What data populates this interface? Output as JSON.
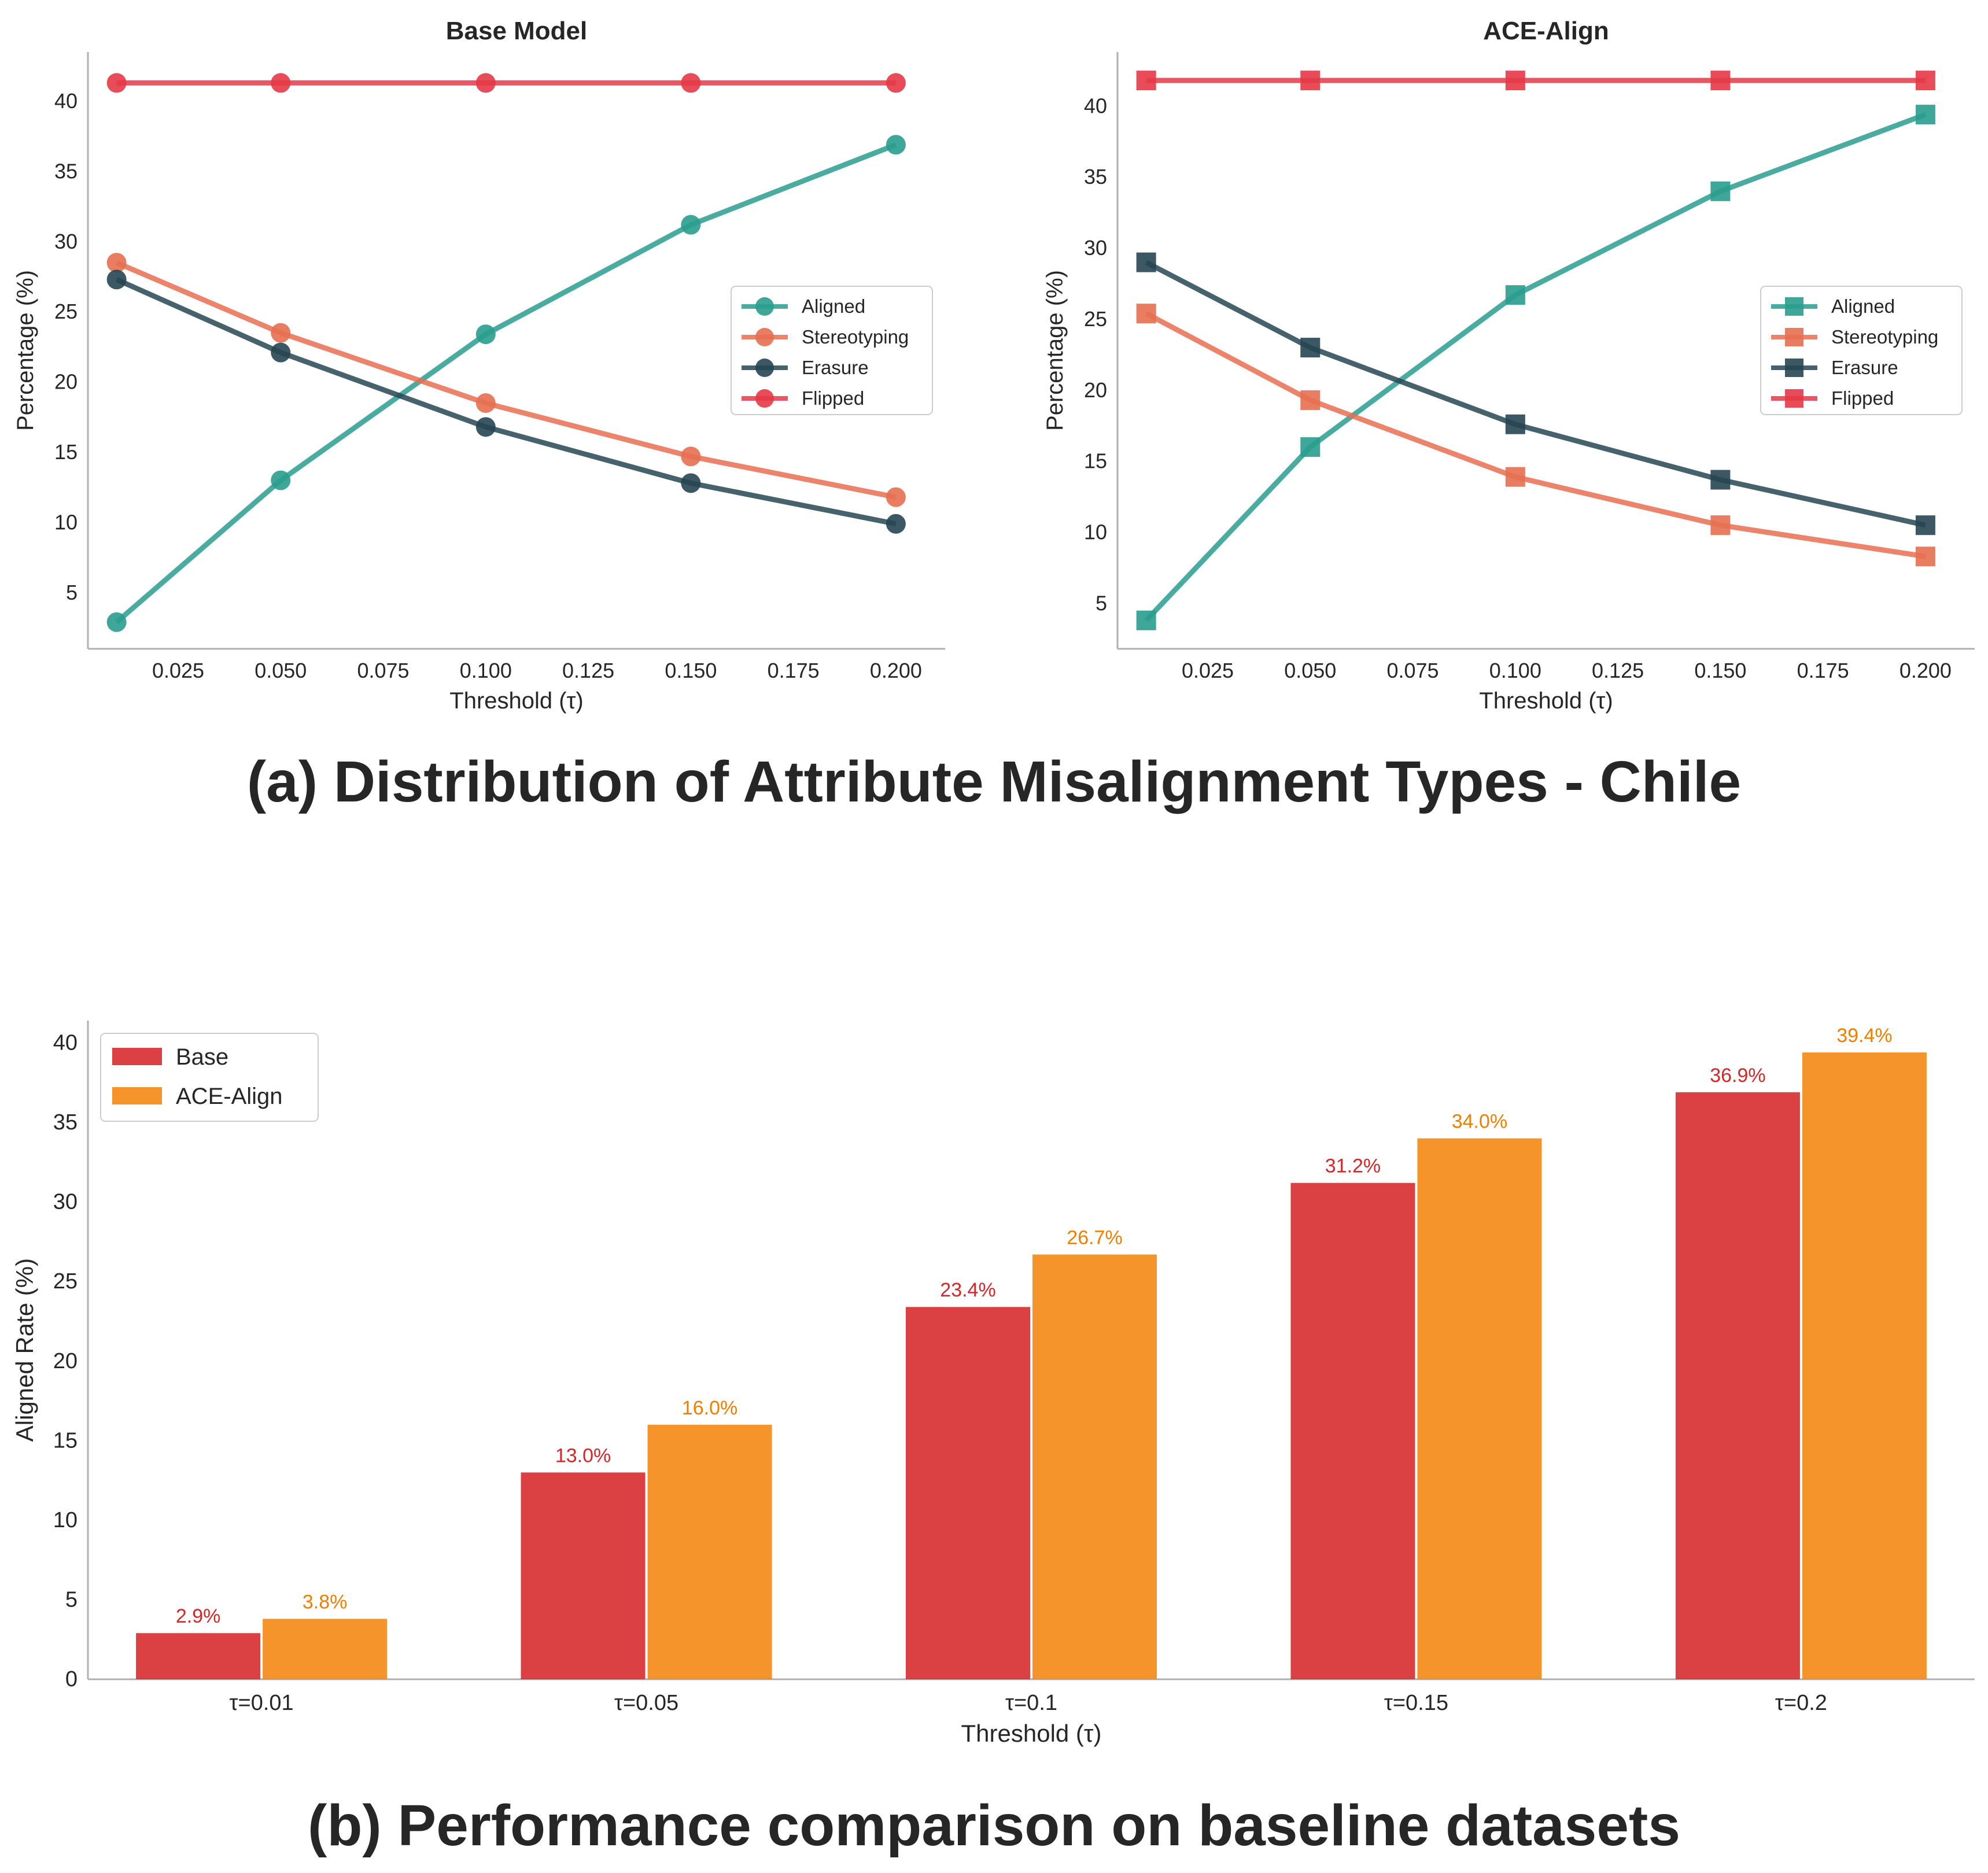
{
  "chart_data": [
    {
      "type": "line",
      "title": "Base Model",
      "xlabel": "Threshold (τ)",
      "ylabel": "Percentage (%)",
      "xlim": [
        0.003,
        0.212
      ],
      "ylim": [
        1.0,
        43.5
      ],
      "xticks": [
        "0.025",
        "0.050",
        "0.075",
        "0.100",
        "0.125",
        "0.150",
        "0.175",
        "0.200"
      ],
      "yticks": [
        "5",
        "10",
        "15",
        "20",
        "25",
        "30",
        "35",
        "40"
      ],
      "marker": "circle",
      "legend_position": "center-right",
      "x": [
        0.01,
        0.05,
        0.1,
        0.15,
        0.2
      ],
      "series": [
        {
          "name": "Aligned",
          "color": "#2a9d8f",
          "values": [
            2.9,
            13.0,
            23.4,
            31.2,
            36.9
          ]
        },
        {
          "name": "Stereotyping",
          "color": "#e76f51",
          "values": [
            28.5,
            23.5,
            18.5,
            14.7,
            11.8
          ]
        },
        {
          "name": "Erasure",
          "color": "#264653",
          "values": [
            27.3,
            22.1,
            16.8,
            12.8,
            9.9
          ]
        },
        {
          "name": "Flipped",
          "color": "#e63946",
          "values": [
            41.3,
            41.3,
            41.3,
            41.3,
            41.3
          ]
        }
      ]
    },
    {
      "type": "line",
      "title": "ACE-Align",
      "xlabel": "Threshold (τ)",
      "ylabel": "Percentage (%)",
      "xlim": [
        0.003,
        0.212
      ],
      "ylim": [
        1.8,
        43.8
      ],
      "xticks": [
        "0.025",
        "0.050",
        "0.075",
        "0.100",
        "0.125",
        "0.150",
        "0.175",
        "0.200"
      ],
      "yticks": [
        "5",
        "10",
        "15",
        "20",
        "25",
        "30",
        "35",
        "40"
      ],
      "marker": "square",
      "legend_position": "center-right",
      "x": [
        0.01,
        0.05,
        0.1,
        0.15,
        0.2
      ],
      "series": [
        {
          "name": "Aligned",
          "color": "#2a9d8f",
          "values": [
            3.8,
            16.0,
            26.7,
            34.0,
            39.4
          ]
        },
        {
          "name": "Stereotyping",
          "color": "#e76f51",
          "values": [
            25.4,
            19.3,
            13.9,
            10.5,
            8.3
          ]
        },
        {
          "name": "Erasure",
          "color": "#264653",
          "values": [
            29.0,
            23.0,
            17.6,
            13.7,
            10.5
          ]
        },
        {
          "name": "Flipped",
          "color": "#e63946",
          "values": [
            41.8,
            41.8,
            41.8,
            41.8,
            41.8
          ]
        }
      ]
    },
    {
      "type": "bar",
      "xlabel": "Threshold (τ)",
      "ylabel": "Aligned Rate (%)",
      "ylim": [
        0,
        41.4
      ],
      "yticks": [
        "0",
        "5",
        "10",
        "15",
        "20",
        "25",
        "30",
        "35",
        "40"
      ],
      "legend_position": "top-left",
      "categories": [
        "τ=0.01",
        "τ=0.05",
        "τ=0.1",
        "τ=0.15",
        "τ=0.2"
      ],
      "series": [
        {
          "name": "Base",
          "color": "#d62728",
          "label_color": "#d62728",
          "values": [
            2.9,
            13.0,
            23.4,
            31.2,
            36.9
          ],
          "labels": [
            "2.9%",
            "13.0%",
            "23.4%",
            "31.2%",
            "36.9%"
          ]
        },
        {
          "name": "ACE-Align",
          "color": "#f5850f",
          "label_color": "#f07f00",
          "values": [
            3.8,
            16.0,
            26.7,
            34.0,
            39.4
          ],
          "labels": [
            "3.8%",
            "16.0%",
            "26.7%",
            "34.0%",
            "39.4%"
          ]
        }
      ]
    }
  ],
  "captions": {
    "a": "(a) Distribution of Attribute Misalignment Types - Chile",
    "b": "(b) Performance comparison on baseline datasets"
  }
}
